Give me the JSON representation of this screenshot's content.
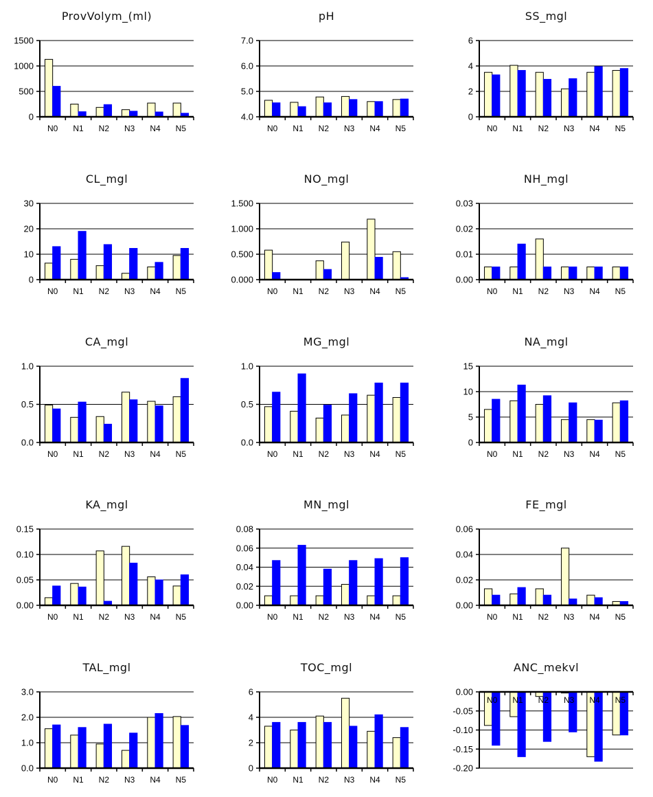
{
  "colors": {
    "series_a": "#ffffcc",
    "series_b": "#0000ff",
    "outline": "#000000",
    "gridline": "#000000"
  },
  "chart_data": [
    {
      "type": "bar",
      "title": "ProvVolym_(ml)",
      "categories": [
        "N0",
        "N1",
        "N2",
        "N3",
        "N4",
        "N5"
      ],
      "series": [
        {
          "values": [
            1130,
            250,
            185,
            140,
            270,
            270
          ]
        },
        {
          "values": [
            600,
            100,
            240,
            110,
            95,
            70
          ]
        }
      ],
      "ylim": [
        0,
        1500
      ],
      "yticks": [
        0,
        500,
        1000,
        1500
      ],
      "ytick_labels": [
        "0",
        "500",
        "1000",
        "1500"
      ],
      "grid": true
    },
    {
      "type": "bar",
      "title": "pH",
      "categories": [
        "N0",
        "N1",
        "N2",
        "N3",
        "N4",
        "N5"
      ],
      "series": [
        {
          "values": [
            4.65,
            4.57,
            4.78,
            4.8,
            4.6,
            4.68
          ]
        },
        {
          "values": [
            4.55,
            4.4,
            4.55,
            4.68,
            4.6,
            4.7
          ]
        }
      ],
      "ylim": [
        4.0,
        7.0
      ],
      "yticks": [
        4.0,
        5.0,
        6.0,
        7.0
      ],
      "ytick_labels": [
        "4.0",
        "5.0",
        "6.0",
        "7.0"
      ],
      "grid": true
    },
    {
      "type": "bar",
      "title": "SS_mgl",
      "categories": [
        "N0",
        "N1",
        "N2",
        "N3",
        "N4",
        "N5"
      ],
      "series": [
        {
          "values": [
            3.5,
            4.05,
            3.5,
            2.2,
            3.5,
            3.65
          ]
        },
        {
          "values": [
            3.3,
            3.65,
            2.95,
            3.0,
            3.95,
            3.8
          ]
        }
      ],
      "ylim": [
        0,
        6
      ],
      "yticks": [
        0,
        2,
        4,
        6
      ],
      "ytick_labels": [
        "0",
        "2",
        "4",
        "6"
      ],
      "grid": true
    },
    {
      "type": "bar",
      "title": "CL_mgl",
      "categories": [
        "N0",
        "N1",
        "N2",
        "N3",
        "N4",
        "N5"
      ],
      "series": [
        {
          "values": [
            6.5,
            8.0,
            5.5,
            2.5,
            5.0,
            9.5
          ]
        },
        {
          "values": [
            13.0,
            19.0,
            13.8,
            12.3,
            6.8,
            12.3
          ]
        }
      ],
      "ylim": [
        0,
        30
      ],
      "yticks": [
        0,
        10,
        20,
        30
      ],
      "ytick_labels": [
        "0",
        "10",
        "20",
        "30"
      ],
      "grid": true
    },
    {
      "type": "bar",
      "title": "NO_mgl",
      "categories": [
        "N0",
        "N1",
        "N2",
        "N3",
        "N4",
        "N5"
      ],
      "series": [
        {
          "values": [
            0.58,
            0,
            0.37,
            0.74,
            1.19,
            0.55
          ]
        },
        {
          "values": [
            0.14,
            0,
            0.2,
            0,
            0.44,
            0.04
          ]
        }
      ],
      "ylim": [
        0,
        1.5
      ],
      "yticks": [
        0,
        0.5,
        1.0,
        1.5
      ],
      "ytick_labels": [
        "0.000",
        "0.500",
        "1.000",
        "1.500"
      ],
      "grid": true
    },
    {
      "type": "bar",
      "title": "NH_mgl",
      "categories": [
        "N0",
        "N1",
        "N2",
        "N3",
        "N4",
        "N5"
      ],
      "series": [
        {
          "values": [
            0.005,
            0.005,
            0.016,
            0.005,
            0.005,
            0.005
          ]
        },
        {
          "values": [
            0.005,
            0.014,
            0.005,
            0.005,
            0.005,
            0.005
          ]
        }
      ],
      "ylim": [
        0,
        0.03
      ],
      "yticks": [
        0,
        0.01,
        0.02,
        0.03
      ],
      "ytick_labels": [
        "0.00",
        "0.01",
        "0.02",
        "0.03"
      ],
      "grid": true
    },
    {
      "type": "bar",
      "title": "CA_mgl",
      "categories": [
        "N0",
        "N1",
        "N2",
        "N3",
        "N4",
        "N5"
      ],
      "series": [
        {
          "values": [
            0.49,
            0.33,
            0.34,
            0.66,
            0.54,
            0.6
          ]
        },
        {
          "values": [
            0.44,
            0.53,
            0.24,
            0.56,
            0.48,
            0.84
          ]
        }
      ],
      "ylim": [
        0,
        1.0
      ],
      "yticks": [
        0,
        0.5,
        1.0
      ],
      "ytick_labels": [
        "0.0",
        "0.5",
        "1.0"
      ],
      "grid": true
    },
    {
      "type": "bar",
      "title": "MG_mgl",
      "categories": [
        "N0",
        "N1",
        "N2",
        "N3",
        "N4",
        "N5"
      ],
      "series": [
        {
          "values": [
            0.47,
            0.41,
            0.32,
            0.36,
            0.62,
            0.59
          ]
        },
        {
          "values": [
            0.66,
            0.9,
            0.49,
            0.64,
            0.78,
            0.78
          ]
        }
      ],
      "ylim": [
        0,
        1.0
      ],
      "yticks": [
        0,
        0.5,
        1.0
      ],
      "ytick_labels": [
        "0.0",
        "0.5",
        "1.0"
      ],
      "grid": true
    },
    {
      "type": "bar",
      "title": "NA_mgl",
      "categories": [
        "N0",
        "N1",
        "N2",
        "N3",
        "N4",
        "N5"
      ],
      "series": [
        {
          "values": [
            6.5,
            8.2,
            7.5,
            4.5,
            4.5,
            7.8
          ]
        },
        {
          "values": [
            8.5,
            11.3,
            9.2,
            7.8,
            4.4,
            8.2
          ]
        }
      ],
      "ylim": [
        0,
        15
      ],
      "yticks": [
        0,
        5,
        10,
        15
      ],
      "ytick_labels": [
        "0",
        "5",
        "10",
        "15"
      ],
      "grid": true
    },
    {
      "type": "bar",
      "title": "KA_mgl",
      "categories": [
        "N0",
        "N1",
        "N2",
        "N3",
        "N4",
        "N5"
      ],
      "series": [
        {
          "values": [
            0.015,
            0.043,
            0.107,
            0.116,
            0.056,
            0.038
          ]
        },
        {
          "values": [
            0.038,
            0.036,
            0.008,
            0.083,
            0.05,
            0.06
          ]
        }
      ],
      "ylim": [
        0,
        0.15
      ],
      "yticks": [
        0,
        0.05,
        0.1,
        0.15
      ],
      "ytick_labels": [
        "0.00",
        "0.05",
        "0.10",
        "0.15"
      ],
      "grid": true
    },
    {
      "type": "bar",
      "title": "MN_mgl",
      "categories": [
        "N0",
        "N1",
        "N2",
        "N3",
        "N4",
        "N5"
      ],
      "series": [
        {
          "values": [
            0.01,
            0.01,
            0.01,
            0.022,
            0.01,
            0.01
          ]
        },
        {
          "values": [
            0.047,
            0.063,
            0.038,
            0.047,
            0.049,
            0.05
          ]
        }
      ],
      "ylim": [
        0,
        0.08
      ],
      "yticks": [
        0,
        0.02,
        0.04,
        0.06,
        0.08
      ],
      "ytick_labels": [
        "0.00",
        "0.02",
        "0.04",
        "0.06",
        "0.08"
      ],
      "grid": true
    },
    {
      "type": "bar",
      "title": "FE_mgl",
      "categories": [
        "N0",
        "N1",
        "N2",
        "N3",
        "N4",
        "N5"
      ],
      "series": [
        {
          "values": [
            0.013,
            0.009,
            0.013,
            0.045,
            0.008,
            0.003
          ]
        },
        {
          "values": [
            0.008,
            0.014,
            0.008,
            0.005,
            0.006,
            0.003
          ]
        }
      ],
      "ylim": [
        0,
        0.06
      ],
      "yticks": [
        0,
        0.02,
        0.04,
        0.06
      ],
      "ytick_labels": [
        "0.00",
        "0.02",
        "0.04",
        "0.06"
      ],
      "grid": true
    },
    {
      "type": "bar",
      "title": "TAL_mgl",
      "categories": [
        "N0",
        "N1",
        "N2",
        "N3",
        "N4",
        "N5"
      ],
      "series": [
        {
          "values": [
            1.55,
            1.3,
            0.95,
            0.7,
            2.0,
            2.03
          ]
        },
        {
          "values": [
            1.7,
            1.6,
            1.73,
            1.38,
            2.15,
            1.68
          ]
        }
      ],
      "ylim": [
        0,
        3.0
      ],
      "yticks": [
        0,
        1,
        2,
        3
      ],
      "ytick_labels": [
        "0.0",
        "1.0",
        "2.0",
        "3.0"
      ],
      "grid": true
    },
    {
      "type": "bar",
      "title": "TOC_mgl",
      "categories": [
        "N0",
        "N1",
        "N2",
        "N3",
        "N4",
        "N5"
      ],
      "series": [
        {
          "values": [
            3.3,
            3.0,
            4.1,
            5.5,
            2.9,
            2.4
          ]
        },
        {
          "values": [
            3.6,
            3.6,
            3.6,
            3.3,
            4.2,
            3.2
          ]
        }
      ],
      "ylim": [
        0,
        6
      ],
      "yticks": [
        0,
        2,
        4,
        6
      ],
      "ytick_labels": [
        "0",
        "2",
        "4",
        "6"
      ],
      "grid": true
    },
    {
      "type": "bar",
      "title": "ANC_mekvl",
      "categories": [
        "N0",
        "N1",
        "N2",
        "N3",
        "N4",
        "N5"
      ],
      "series": [
        {
          "values": [
            -0.088,
            -0.065,
            -0.012,
            -0.003,
            -0.17,
            -0.113
          ]
        },
        {
          "values": [
            -0.14,
            -0.17,
            -0.13,
            -0.105,
            -0.182,
            -0.113
          ]
        }
      ],
      "ylim": [
        -0.2,
        0
      ],
      "yticks": [
        -0.2,
        -0.15,
        -0.1,
        -0.05,
        0
      ],
      "ytick_labels": [
        "-0.20",
        "-0.15",
        "-0.10",
        "-0.05",
        "0.00"
      ],
      "grid": true
    }
  ]
}
